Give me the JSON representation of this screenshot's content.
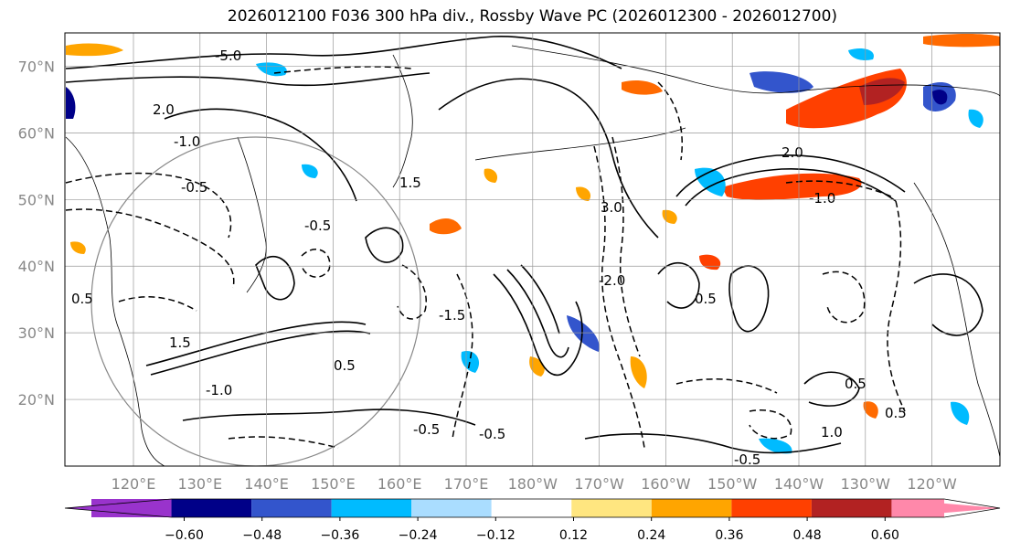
{
  "title": "2026012100 F036 300 hPa div., Rossby Wave PC (2026012300 - 2026012700)",
  "map": {
    "lat_labels": [
      "70°N",
      "60°N",
      "50°N",
      "40°N",
      "30°N",
      "20°N"
    ],
    "lat_values": [
      70,
      60,
      50,
      40,
      30,
      20
    ],
    "lon_labels": [
      "120°E",
      "130°E",
      "140°E",
      "150°E",
      "160°E",
      "170°E",
      "180°W",
      "170°W",
      "160°W",
      "150°W",
      "140°W",
      "130°W",
      "120°W"
    ],
    "lat_range": [
      10,
      75
    ],
    "grid_color": "#999999",
    "coast_color": "#000000",
    "contour_labels": [
      "-5.0",
      "2.0",
      "-1.0",
      "-0.5",
      "1.5",
      "0.5",
      "-1.5",
      "-2.0",
      "3.0",
      "-0.5",
      "0.5",
      "-1.0",
      "2.0",
      "-1.0",
      "0.5",
      "-0.5",
      "1.0",
      "0.5",
      "-0.5",
      "-0.5",
      "0.5",
      "1.5"
    ]
  },
  "colorbar": {
    "ticks": [
      "−0.60",
      "−0.48",
      "−0.36",
      "−0.24",
      "−0.12",
      "0.12",
      "0.24",
      "0.36",
      "0.48",
      "0.60"
    ],
    "colors": [
      "#9933cc",
      "#000088",
      "#3355cc",
      "#00bbff",
      "#aaddff",
      "#ffffff",
      "#ffe680",
      "#ffa500",
      "#ff4000",
      "#b22222",
      "#ff88aa"
    ]
  }
}
